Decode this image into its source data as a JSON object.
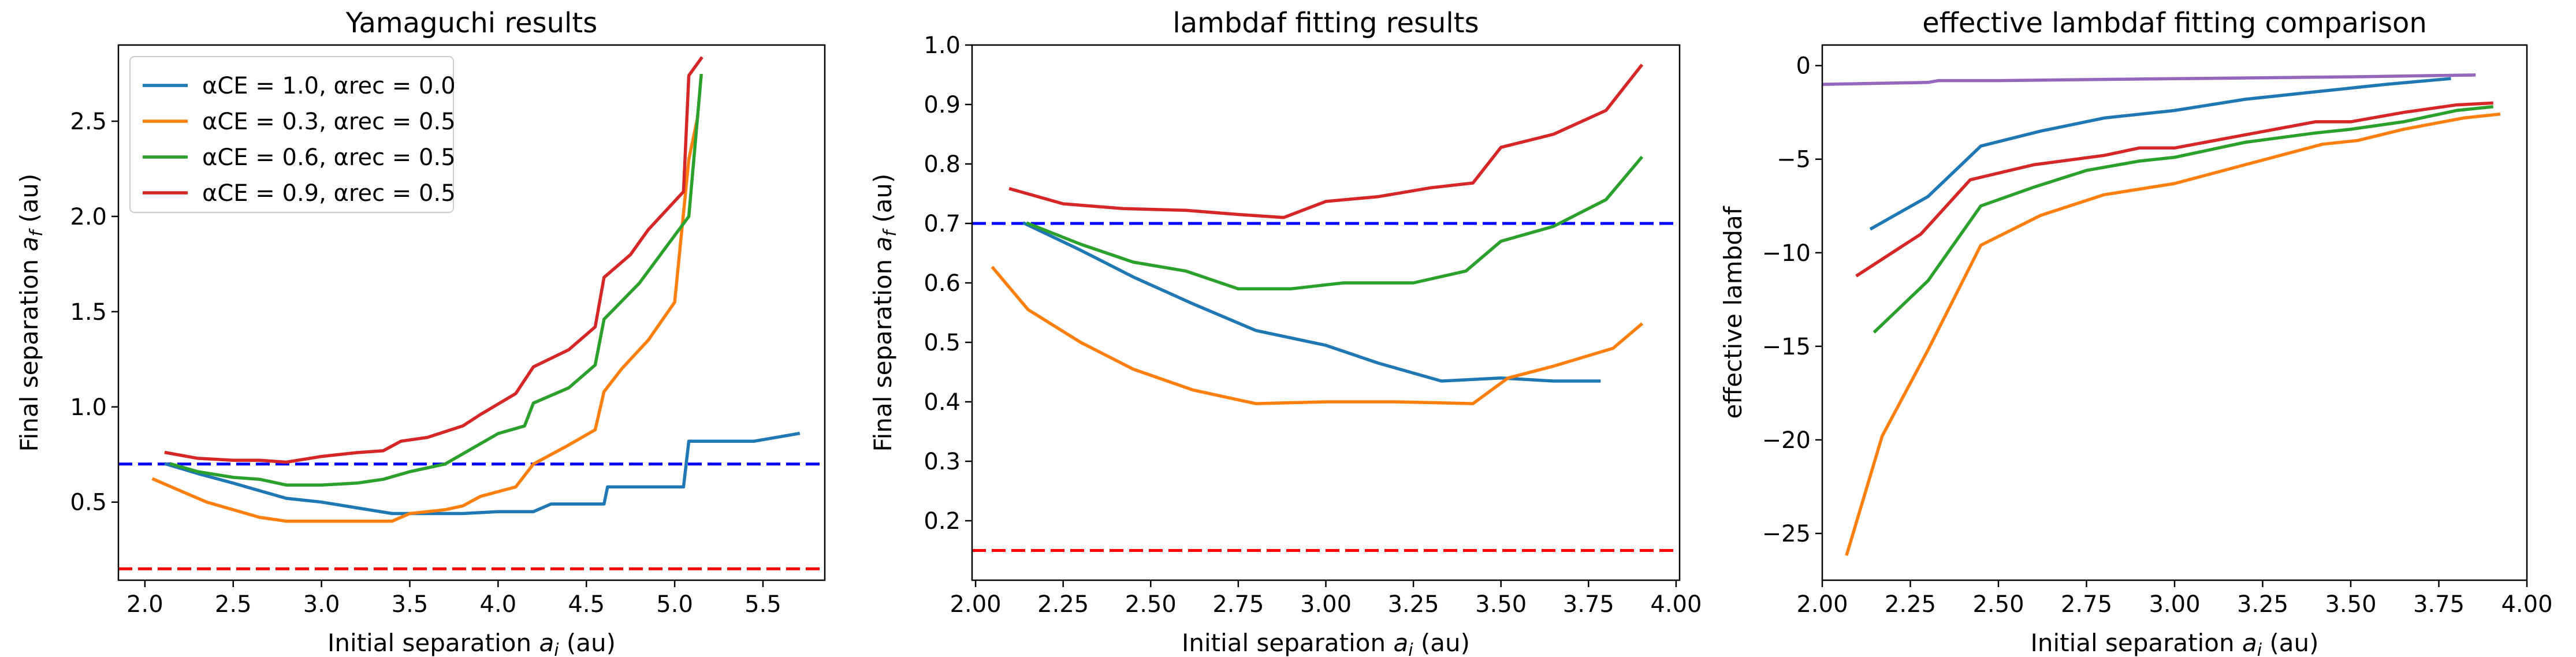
{
  "chart_data": [
    {
      "type": "line",
      "title": "Yamaguchi results",
      "xlabel": "Initial separation a_i (au)",
      "ylabel": "Final separation a_f (au)",
      "xlim": [
        1.85,
        5.85
      ],
      "ylim": [
        0.09,
        2.9
      ],
      "xticks": [
        2.0,
        2.5,
        3.0,
        3.5,
        4.0,
        4.5,
        5.0,
        5.5
      ],
      "xtick_labels": [
        "2.0",
        "2.5",
        "3.0",
        "3.5",
        "4.0",
        "4.5",
        "5.0",
        "5.5"
      ],
      "yticks": [
        0.5,
        1.0,
        1.5,
        2.0,
        2.5
      ],
      "ytick_labels": [
        "0.5",
        "1.0",
        "1.5",
        "2.0",
        "2.5"
      ],
      "grid": false,
      "legend_position": "top-left",
      "hlines": [
        {
          "y": 0.7,
          "color": "#0000ff",
          "style": "dashed"
        },
        {
          "y": 0.15,
          "color": "#ff0000",
          "style": "dashed"
        }
      ],
      "series": [
        {
          "name": "αCE = 1.0, αrec = 0.0",
          "color": "#1f77b4",
          "x": [
            2.12,
            2.3,
            2.5,
            2.65,
            2.8,
            3.0,
            3.2,
            3.4,
            3.6,
            3.8,
            4.0,
            4.1,
            4.2,
            4.3,
            4.6,
            4.62,
            5.05,
            5.08,
            5.45,
            5.7
          ],
          "y": [
            0.7,
            0.65,
            0.6,
            0.56,
            0.52,
            0.5,
            0.47,
            0.44,
            0.44,
            0.44,
            0.45,
            0.45,
            0.45,
            0.49,
            0.49,
            0.58,
            0.58,
            0.82,
            0.82,
            0.86
          ]
        },
        {
          "name": "αCE = 0.3, αrec = 0.5",
          "color": "#ff7f0e",
          "x": [
            2.05,
            2.2,
            2.35,
            2.5,
            2.65,
            2.8,
            3.0,
            3.2,
            3.4,
            3.5,
            3.7,
            3.8,
            3.9,
            4.1,
            4.2,
            4.4,
            4.55,
            4.6,
            4.7,
            4.85,
            5.0,
            5.08,
            5.13
          ],
          "y": [
            0.62,
            0.56,
            0.5,
            0.46,
            0.42,
            0.4,
            0.4,
            0.4,
            0.4,
            0.44,
            0.46,
            0.48,
            0.53,
            0.58,
            0.7,
            0.8,
            0.88,
            1.08,
            1.2,
            1.35,
            1.55,
            2.3,
            2.52
          ]
        },
        {
          "name": "αCE = 0.6, αrec = 0.5",
          "color": "#2ca02c",
          "x": [
            2.15,
            2.3,
            2.5,
            2.65,
            2.8,
            3.0,
            3.2,
            3.35,
            3.5,
            3.7,
            3.85,
            4.0,
            4.15,
            4.2,
            4.4,
            4.55,
            4.6,
            4.8,
            5.0,
            5.08,
            5.15
          ],
          "y": [
            0.7,
            0.66,
            0.63,
            0.62,
            0.59,
            0.59,
            0.6,
            0.62,
            0.66,
            0.7,
            0.78,
            0.86,
            0.9,
            1.02,
            1.1,
            1.22,
            1.46,
            1.65,
            1.9,
            2.0,
            2.74
          ]
        },
        {
          "name": "αCE = 0.9, αrec = 0.5",
          "color": "#d62728",
          "x": [
            2.12,
            2.3,
            2.5,
            2.65,
            2.8,
            3.0,
            3.2,
            3.35,
            3.45,
            3.6,
            3.8,
            3.9,
            4.1,
            4.2,
            4.4,
            4.55,
            4.6,
            4.75,
            4.85,
            5.05,
            5.08,
            5.15
          ],
          "y": [
            0.76,
            0.73,
            0.72,
            0.72,
            0.71,
            0.74,
            0.76,
            0.77,
            0.82,
            0.84,
            0.9,
            0.96,
            1.07,
            1.21,
            1.3,
            1.42,
            1.68,
            1.8,
            1.93,
            2.13,
            2.74,
            2.83
          ]
        }
      ]
    },
    {
      "type": "line",
      "title": "lambdaf fitting results",
      "xlabel": "Initial separation a_i (au)",
      "ylabel": "Final separation a_f (au)",
      "xlim": [
        1.99,
        4.01
      ],
      "ylim": [
        0.1,
        1.0
      ],
      "xticks": [
        2.0,
        2.25,
        2.5,
        2.75,
        3.0,
        3.25,
        3.5,
        3.75,
        4.0
      ],
      "xtick_labels": [
        "2.00",
        "2.25",
        "2.50",
        "2.75",
        "3.00",
        "3.25",
        "3.50",
        "3.75",
        "4.00"
      ],
      "yticks": [
        0.2,
        0.3,
        0.4,
        0.5,
        0.6,
        0.7,
        0.8,
        0.9,
        1.0
      ],
      "ytick_labels": [
        "0.2",
        "0.3",
        "0.4",
        "0.5",
        "0.6",
        "0.7",
        "0.8",
        "0.9",
        "1.0"
      ],
      "grid": false,
      "hlines": [
        {
          "y": 0.7,
          "color": "#0000ff",
          "style": "dashed"
        },
        {
          "y": 0.15,
          "color": "#ff0000",
          "style": "dashed"
        }
      ],
      "series": [
        {
          "color": "#1f77b4",
          "x": [
            2.14,
            2.3,
            2.45,
            2.62,
            2.8,
            3.0,
            3.15,
            3.33,
            3.5,
            3.65,
            3.78
          ],
          "y": [
            0.7,
            0.655,
            0.61,
            0.565,
            0.52,
            0.495,
            0.465,
            0.435,
            0.44,
            0.435,
            0.435
          ]
        },
        {
          "color": "#ff7f0e",
          "x": [
            2.05,
            2.15,
            2.3,
            2.45,
            2.62,
            2.8,
            3.0,
            3.2,
            3.42,
            3.52,
            3.65,
            3.82,
            3.9
          ],
          "y": [
            0.625,
            0.555,
            0.5,
            0.455,
            0.42,
            0.397,
            0.4,
            0.4,
            0.397,
            0.44,
            0.46,
            0.49,
            0.53
          ]
        },
        {
          "color": "#2ca02c",
          "x": [
            2.15,
            2.3,
            2.45,
            2.6,
            2.75,
            2.9,
            3.05,
            3.25,
            3.4,
            3.5,
            3.65,
            3.8,
            3.9
          ],
          "y": [
            0.7,
            0.665,
            0.635,
            0.62,
            0.59,
            0.59,
            0.6,
            0.6,
            0.62,
            0.67,
            0.695,
            0.74,
            0.81
          ]
        },
        {
          "color": "#d62728",
          "x": [
            2.1,
            2.25,
            2.42,
            2.6,
            2.75,
            2.88,
            3.0,
            3.15,
            3.3,
            3.42,
            3.5,
            3.65,
            3.8,
            3.9
          ],
          "y": [
            0.758,
            0.733,
            0.725,
            0.722,
            0.715,
            0.71,
            0.737,
            0.745,
            0.76,
            0.768,
            0.828,
            0.85,
            0.89,
            0.965
          ]
        }
      ]
    },
    {
      "type": "line",
      "title": "effective lambdaf fitting comparison",
      "xlabel": "Initial separation a_i (au)",
      "ylabel": "effective lambdaf",
      "xlim": [
        2.0,
        4.0
      ],
      "ylim": [
        -27.5,
        1.1
      ],
      "xticks": [
        2.0,
        2.25,
        2.5,
        2.75,
        3.0,
        3.25,
        3.5,
        3.75,
        4.0
      ],
      "xtick_labels": [
        "2.00",
        "2.25",
        "2.50",
        "2.75",
        "3.00",
        "3.25",
        "3.50",
        "3.75",
        "4.00"
      ],
      "yticks": [
        0,
        -5,
        -10,
        -15,
        -20,
        -25
      ],
      "ytick_labels": [
        "0",
        "−5",
        "−10",
        "−15",
        "−20",
        "−25"
      ],
      "grid": false,
      "series": [
        {
          "color": "#9467bd",
          "x": [
            2.0,
            2.3,
            2.33,
            2.5,
            3.0,
            3.5,
            3.85
          ],
          "y": [
            -1.0,
            -0.9,
            -0.8,
            -0.8,
            -0.7,
            -0.6,
            -0.5
          ]
        },
        {
          "color": "#1f77b4",
          "x": [
            2.14,
            2.3,
            2.45,
            2.62,
            2.8,
            3.0,
            3.2,
            3.4,
            3.6,
            3.78
          ],
          "y": [
            -8.7,
            -7.0,
            -4.3,
            -3.5,
            -2.8,
            -2.4,
            -1.8,
            -1.4,
            -1.0,
            -0.7
          ]
        },
        {
          "color": "#d62728",
          "x": [
            2.1,
            2.28,
            2.42,
            2.6,
            2.8,
            2.9,
            3.0,
            3.2,
            3.4,
            3.45,
            3.5,
            3.65,
            3.8,
            3.9
          ],
          "y": [
            -11.2,
            -9.0,
            -6.1,
            -5.3,
            -4.8,
            -4.4,
            -4.4,
            -3.7,
            -3.0,
            -3.0,
            -3.0,
            -2.5,
            -2.1,
            -2.0
          ]
        },
        {
          "color": "#2ca02c",
          "x": [
            2.15,
            2.3,
            2.45,
            2.6,
            2.75,
            2.9,
            3.0,
            3.2,
            3.4,
            3.5,
            3.65,
            3.8,
            3.9
          ],
          "y": [
            -14.2,
            -11.5,
            -7.5,
            -6.5,
            -5.6,
            -5.1,
            -4.9,
            -4.1,
            -3.6,
            -3.4,
            -3.0,
            -2.4,
            -2.2
          ]
        },
        {
          "color": "#ff7f0e",
          "x": [
            2.07,
            2.17,
            2.3,
            2.45,
            2.62,
            2.8,
            3.0,
            3.2,
            3.42,
            3.52,
            3.65,
            3.82,
            3.92
          ],
          "y": [
            -26.1,
            -19.8,
            -15.2,
            -9.6,
            -8.0,
            -6.9,
            -6.3,
            -5.3,
            -4.2,
            -4.0,
            -3.4,
            -2.8,
            -2.6
          ]
        }
      ]
    }
  ]
}
